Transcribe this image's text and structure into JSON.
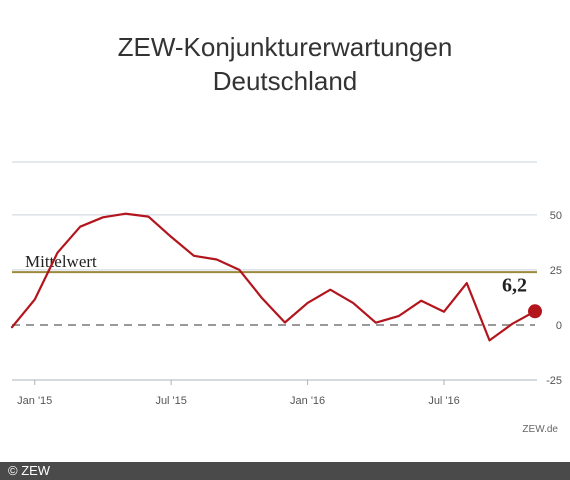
{
  "chart_data": {
    "type": "line",
    "title_line1": "ZEW-Konjunkturerwartungen",
    "title_line2": "Deutschland",
    "x": [
      "2014-12",
      "2015-01",
      "2015-02",
      "2015-03",
      "2015-04",
      "2015-05",
      "2015-06",
      "2015-07",
      "2015-08",
      "2015-09",
      "2015-10",
      "2015-11",
      "2015-12",
      "2016-01",
      "2016-02",
      "2016-03",
      "2016-04",
      "2016-05",
      "2016-06",
      "2016-07",
      "2016-08",
      "2016-09",
      "2016-10",
      "2016-11"
    ],
    "x_tick_labels": [
      "Jan '15",
      "Jul '15",
      "Jan '16",
      "Jul '16"
    ],
    "x_tick_values": [
      "2015-01",
      "2015-07",
      "2016-01",
      "2016-07"
    ],
    "series": [
      {
        "values": [
          -1.0,
          11.5,
          32.8,
          44.6,
          48.9,
          50.5,
          49.2,
          40.0,
          31.4,
          29.7,
          25.0,
          12.1,
          1.1,
          10.0,
          16.0,
          10.0,
          1.0,
          4.0,
          11.0,
          6.0,
          19.0,
          -7.0,
          0.5,
          6.2
        ],
        "color": "#b3151d"
      }
    ],
    "reference_lines": [
      {
        "label": "Mittelwert",
        "value": 24.0,
        "color": "#9b8a3c"
      },
      {
        "value": 0,
        "color": "#999999",
        "style": "dashed"
      }
    ],
    "last_value_label": "6,2",
    "y_ticks": [
      50,
      25,
      0,
      -25
    ],
    "y_tick_labels": [
      "50",
      "25",
      "0",
      "-25"
    ],
    "ylim": [
      -25,
      74
    ],
    "grid": true,
    "y_axis_position": "right"
  },
  "source": "ZEW.de",
  "footer": "© ZEW"
}
